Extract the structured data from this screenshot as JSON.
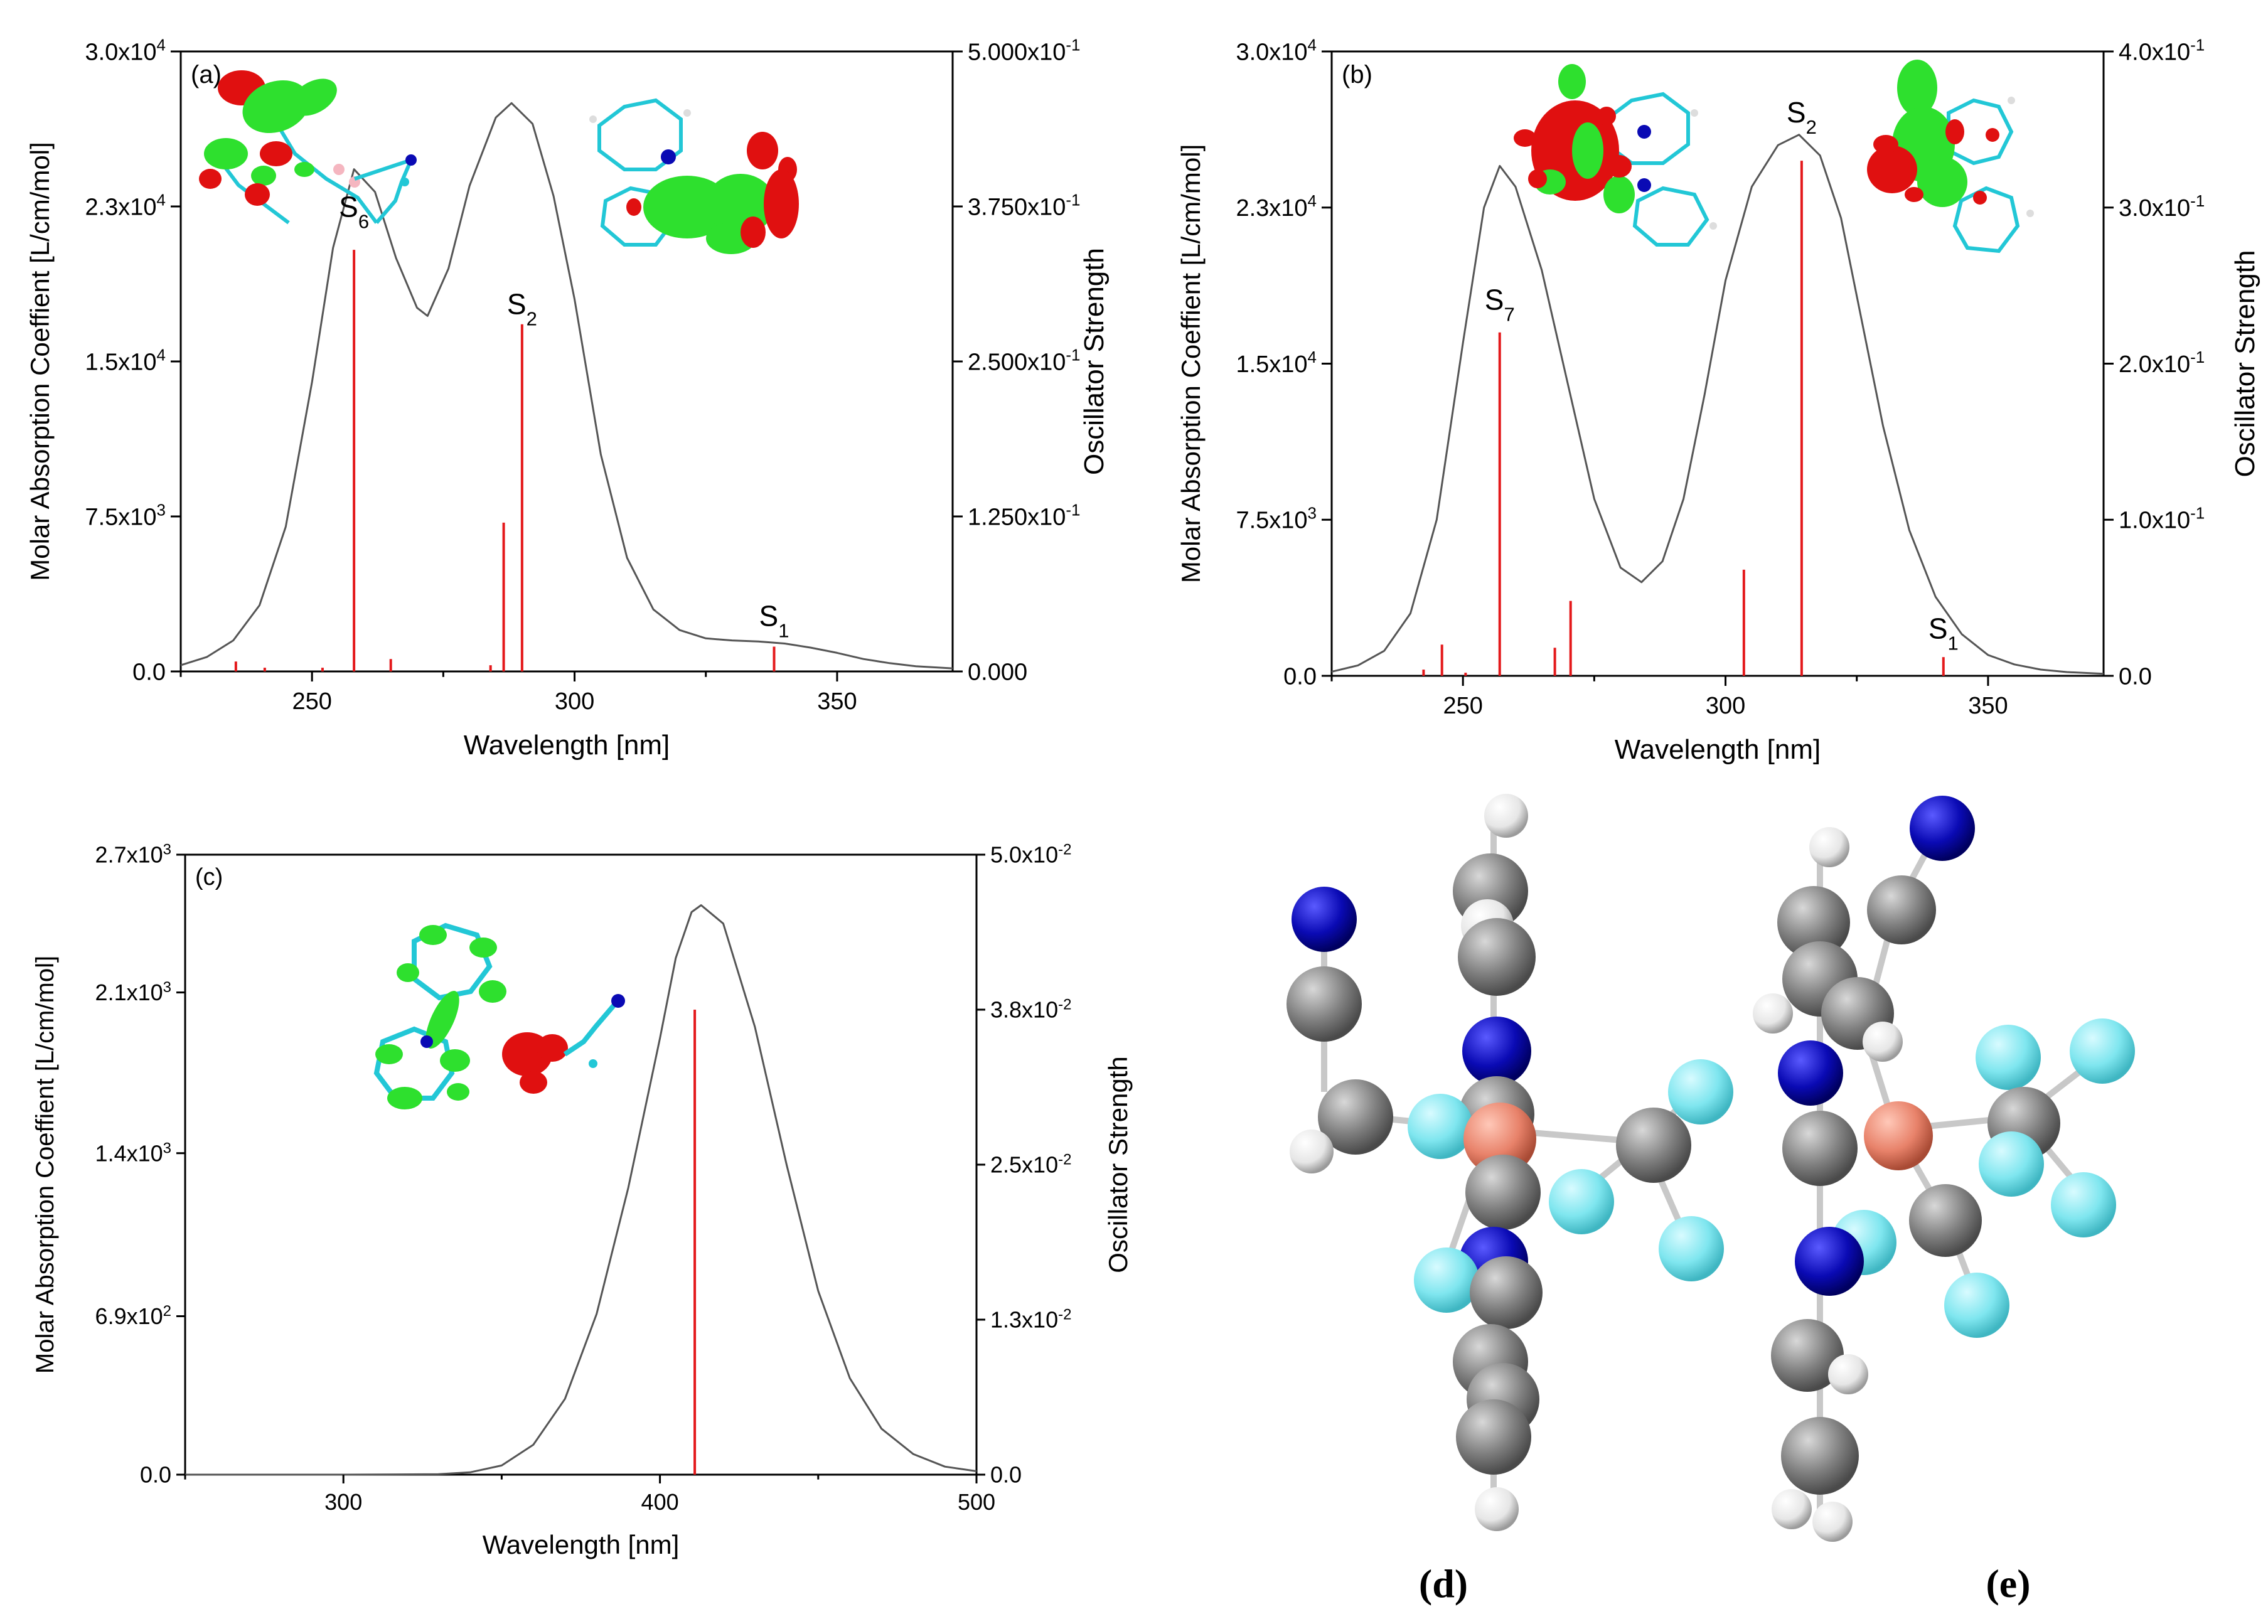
{
  "chart_data": [
    {
      "panel": "(a)",
      "type": "line",
      "xlabel": "Wavelength [nm]",
      "ylabel": "Molar Absorption Coeffient [L/cm/mol]",
      "y2label": "Oscillator Strength",
      "xlim": [
        225,
        372
      ],
      "ylim": [
        0,
        30000
      ],
      "y2lim": [
        0,
        0.5
      ],
      "x_ticks": [
        250,
        300,
        350
      ],
      "x_tick_labels": [
        "250",
        "300",
        "350"
      ],
      "y_ticks": [
        0,
        7500,
        15000,
        22500,
        30000
      ],
      "y_tick_labels": [
        {
          "base": "0.0",
          "exp": ""
        },
        {
          "base": "7.5x10",
          "exp": "3"
        },
        {
          "base": "1.5x10",
          "exp": "4"
        },
        {
          "base": "2.3x10",
          "exp": "4"
        },
        {
          "base": "3.0x10",
          "exp": "4"
        }
      ],
      "y2_ticks": [
        0,
        0.125,
        0.25,
        0.375,
        0.5
      ],
      "y2_tick_labels": [
        {
          "base": "0.000",
          "exp": ""
        },
        {
          "base": "1.250x10",
          "exp": "-1"
        },
        {
          "base": "2.500x10",
          "exp": "-1"
        },
        {
          "base": "3.750x10",
          "exp": "-1"
        },
        {
          "base": "5.000x10",
          "exp": "-1"
        }
      ],
      "spectrum": [
        [
          225,
          300
        ],
        [
          230,
          700
        ],
        [
          235,
          1500
        ],
        [
          240,
          3200
        ],
        [
          245,
          7000
        ],
        [
          250,
          14000
        ],
        [
          254,
          20500
        ],
        [
          258,
          24300
        ],
        [
          262,
          23200
        ],
        [
          266,
          20000
        ],
        [
          270,
          17600
        ],
        [
          272,
          17200
        ],
        [
          276,
          19500
        ],
        [
          280,
          23500
        ],
        [
          285,
          26800
        ],
        [
          288,
          27500
        ],
        [
          292,
          26500
        ],
        [
          296,
          23000
        ],
        [
          300,
          18000
        ],
        [
          305,
          10500
        ],
        [
          310,
          5500
        ],
        [
          315,
          3000
        ],
        [
          320,
          2000
        ],
        [
          325,
          1600
        ],
        [
          330,
          1500
        ],
        [
          335,
          1450
        ],
        [
          340,
          1350
        ],
        [
          345,
          1150
        ],
        [
          350,
          900
        ],
        [
          355,
          600
        ],
        [
          360,
          400
        ],
        [
          365,
          250
        ],
        [
          372,
          150
        ]
      ],
      "sticks": [
        [
          235.5,
          0.008
        ],
        [
          241,
          0.003
        ],
        [
          252,
          0.003
        ],
        [
          258,
          0.34
        ],
        [
          265,
          0.01
        ],
        [
          284,
          0.005
        ],
        [
          286.5,
          0.12
        ],
        [
          290,
          0.28
        ],
        [
          338,
          0.02
        ]
      ],
      "annotations": [
        {
          "label": "S",
          "sub": "6",
          "x": 258,
          "y": 22000
        },
        {
          "label": "S",
          "sub": "2",
          "x": 290,
          "y": 17300
        },
        {
          "label": "S",
          "sub": "1",
          "x": 338,
          "y": 2200
        }
      ]
    },
    {
      "panel": "(b)",
      "type": "line",
      "xlabel": "Wavelength [nm]",
      "ylabel": "Molar Absorption Coeffient [L/cm/mol]",
      "y2label": "Oscillator Strength",
      "xlim": [
        225,
        372
      ],
      "ylim": [
        0,
        30000
      ],
      "y2lim": [
        0,
        0.4
      ],
      "x_ticks": [
        250,
        300,
        350
      ],
      "x_tick_labels": [
        "250",
        "300",
        "350"
      ],
      "y_ticks": [
        0,
        7500,
        15000,
        22500,
        30000
      ],
      "y_tick_labels": [
        {
          "base": "0.0",
          "exp": ""
        },
        {
          "base": "7.5x10",
          "exp": "3"
        },
        {
          "base": "1.5x10",
          "exp": "4"
        },
        {
          "base": "2.3x10",
          "exp": "4"
        },
        {
          "base": "3.0x10",
          "exp": "4"
        }
      ],
      "y2_ticks": [
        0,
        0.1,
        0.2,
        0.3,
        0.4
      ],
      "y2_tick_labels": [
        {
          "base": "0.0",
          "exp": ""
        },
        {
          "base": "1.0x10",
          "exp": "-1"
        },
        {
          "base": "2.0x10",
          "exp": "-1"
        },
        {
          "base": "3.0x10",
          "exp": "-1"
        },
        {
          "base": "4.0x10",
          "exp": "-1"
        }
      ],
      "spectrum": [
        [
          225,
          200
        ],
        [
          230,
          500
        ],
        [
          235,
          1200
        ],
        [
          240,
          3000
        ],
        [
          245,
          7500
        ],
        [
          250,
          16000
        ],
        [
          254,
          22500
        ],
        [
          257,
          24500
        ],
        [
          260,
          23500
        ],
        [
          265,
          19500
        ],
        [
          270,
          14000
        ],
        [
          275,
          8500
        ],
        [
          280,
          5200
        ],
        [
          284,
          4500
        ],
        [
          288,
          5500
        ],
        [
          292,
          8500
        ],
        [
          296,
          13500
        ],
        [
          300,
          19000
        ],
        [
          305,
          23500
        ],
        [
          310,
          25500
        ],
        [
          314,
          26000
        ],
        [
          318,
          25000
        ],
        [
          322,
          22000
        ],
        [
          326,
          17000
        ],
        [
          330,
          12000
        ],
        [
          335,
          7000
        ],
        [
          340,
          3800
        ],
        [
          345,
          2000
        ],
        [
          350,
          1000
        ],
        [
          355,
          550
        ],
        [
          360,
          300
        ],
        [
          365,
          180
        ],
        [
          372,
          100
        ]
      ],
      "sticks": [
        [
          242.5,
          0.004
        ],
        [
          246,
          0.02
        ],
        [
          250.5,
          0.002
        ],
        [
          257,
          0.22
        ],
        [
          267.5,
          0.018
        ],
        [
          270.5,
          0.048
        ],
        [
          303.5,
          0.068
        ],
        [
          314.5,
          0.33
        ],
        [
          341.5,
          0.012
        ]
      ],
      "annotations": [
        {
          "label": "S",
          "sub": "7",
          "x": 257,
          "y": 17600
        },
        {
          "label": "S",
          "sub": "2",
          "x": 314.5,
          "y": 26600
        },
        {
          "label": "S",
          "sub": "1",
          "x": 341.5,
          "y": 1800
        }
      ]
    },
    {
      "panel": "(c)",
      "type": "line",
      "xlabel": "Wavelength [nm]",
      "ylabel": "Molar Absorption Coeffient [L/cm/mol]",
      "y2label": "Oscillator Strength",
      "xlim": [
        250,
        500
      ],
      "ylim": [
        0,
        2700
      ],
      "y2lim": [
        0,
        0.05
      ],
      "x_ticks": [
        300,
        400,
        500
      ],
      "x_tick_labels": [
        "300",
        "400",
        "500"
      ],
      "y_ticks": [
        0,
        690,
        1400,
        2100,
        2700
      ],
      "y_tick_labels": [
        {
          "base": "0.0",
          "exp": ""
        },
        {
          "base": "6.9x10",
          "exp": "2"
        },
        {
          "base": "1.4x10",
          "exp": "3"
        },
        {
          "base": "2.1x10",
          "exp": "3"
        },
        {
          "base": "2.7x10",
          "exp": "3"
        }
      ],
      "y2_ticks": [
        0,
        0.0125,
        0.025,
        0.0375,
        0.05
      ],
      "y2_tick_labels": [
        {
          "base": "0.0",
          "exp": ""
        },
        {
          "base": "1.3x10",
          "exp": "-2"
        },
        {
          "base": "2.5x10",
          "exp": "-2"
        },
        {
          "base": "3.8x10",
          "exp": "-2"
        },
        {
          "base": "5.0x10",
          "exp": "-2"
        }
      ],
      "spectrum": [
        [
          250,
          0
        ],
        [
          300,
          0
        ],
        [
          330,
          2
        ],
        [
          340,
          10
        ],
        [
          350,
          40
        ],
        [
          360,
          130
        ],
        [
          370,
          330
        ],
        [
          380,
          700
        ],
        [
          390,
          1250
        ],
        [
          400,
          1900
        ],
        [
          405,
          2250
        ],
        [
          410,
          2450
        ],
        [
          413,
          2480
        ],
        [
          420,
          2400
        ],
        [
          430,
          1950
        ],
        [
          440,
          1350
        ],
        [
          450,
          800
        ],
        [
          460,
          420
        ],
        [
          470,
          200
        ],
        [
          480,
          90
        ],
        [
          490,
          35
        ],
        [
          500,
          15
        ]
      ],
      "sticks": [
        [
          411,
          0.0375
        ]
      ],
      "annotations": []
    }
  ],
  "panel_labels": {
    "d": "(d)",
    "e": "(e)"
  },
  "colors": {
    "curve": "#555555",
    "stick": "#e41a1c",
    "orbital_positive": "#2ee02e",
    "orbital_negative": "#e01010",
    "carbon": "#808080",
    "nitrogen": "#0a0ab4",
    "hydrogen": "#eeeeee",
    "fluorine": "#7fe6ef",
    "boron": "#e8826a",
    "bond_stick": "#22c7d6"
  }
}
